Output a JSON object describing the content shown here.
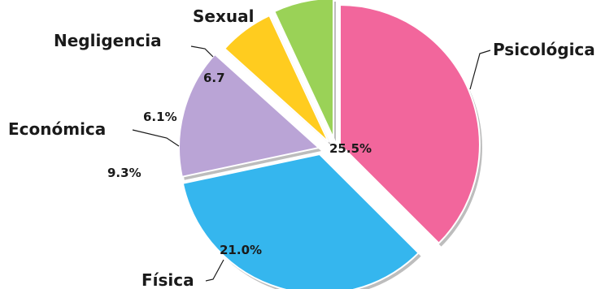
{
  "chart_data": {
    "type": "pie",
    "style": "exploded 3D-style pie",
    "slices": [
      {
        "category": "Psicológica",
        "color": "#f2669c",
        "value": null,
        "label": ""
      },
      {
        "category": "Física",
        "color": "#35b6ee",
        "value": 25.5,
        "label": "25.5%"
      },
      {
        "category": "Económica",
        "color": "#baa4d6",
        "value": 21.0,
        "label": "21.0%"
      },
      {
        "category": "Negligencia",
        "color": "#ffcc1f",
        "value": 9.3,
        "label": "9.3%"
      },
      {
        "category": "Sexual",
        "color": "#9ad257",
        "value": 6.1,
        "label": "6.1%"
      }
    ],
    "extra_labels": [
      "6.7"
    ],
    "legend": "none"
  }
}
